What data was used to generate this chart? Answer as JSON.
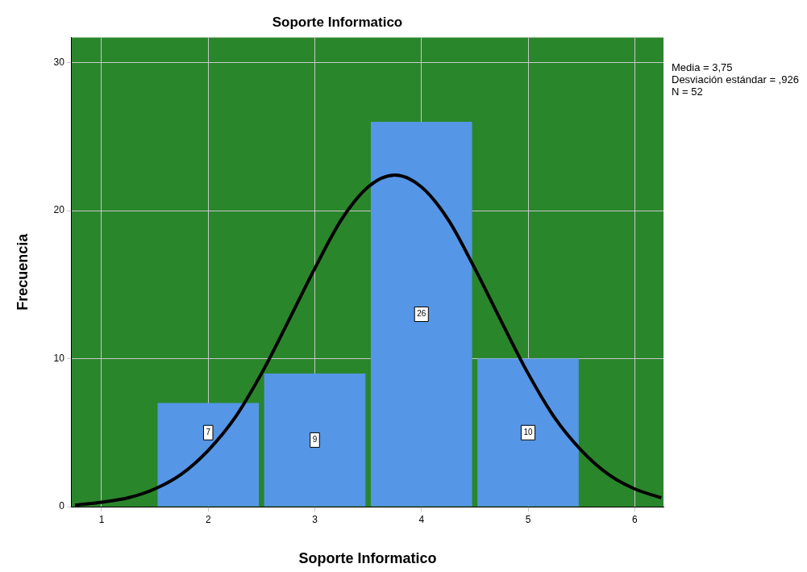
{
  "chart_data": {
    "type": "histogram",
    "title": "Soporte Informatico",
    "xlabel": "Soporte Informatico",
    "ylabel": "Frecuencia",
    "bins": [
      1.5,
      2.5,
      3.5,
      4.5,
      5.5
    ],
    "values": [
      7,
      9,
      26,
      10
    ],
    "color": "#5596e6",
    "value_labels": [
      "7",
      "9",
      "26",
      "10"
    ],
    "series": [
      {
        "type": "line",
        "color": "#000000",
        "x": [
          0.75,
          1.0,
          1.25,
          1.5,
          1.75,
          2.0,
          2.25,
          2.5,
          2.75,
          3.0,
          3.25,
          3.5,
          3.75,
          4.0,
          4.25,
          4.5,
          4.75,
          5.0,
          5.25,
          5.5,
          5.75,
          6.0,
          6.25
        ],
        "values": [
          0.1,
          0.3,
          0.6,
          1.2,
          2.2,
          3.8,
          6.0,
          9.0,
          12.5,
          16.1,
          19.4,
          21.6,
          22.4,
          21.6,
          19.4,
          16.1,
          12.5,
          9.0,
          6.0,
          3.8,
          2.2,
          1.2,
          0.6
        ]
      }
    ],
    "xlim": [
      0.72,
      6.27
    ],
    "xticks": [
      1,
      2,
      3,
      4,
      5,
      6
    ],
    "ylim": [
      0,
      31.7
    ],
    "yticks": [
      0,
      10,
      20,
      30
    ],
    "grid": true,
    "legend": false,
    "marker": "none",
    "annotations": [
      "Media = 3,75",
      "Desviación estándar = ,926",
      "N = 52"
    ]
  }
}
